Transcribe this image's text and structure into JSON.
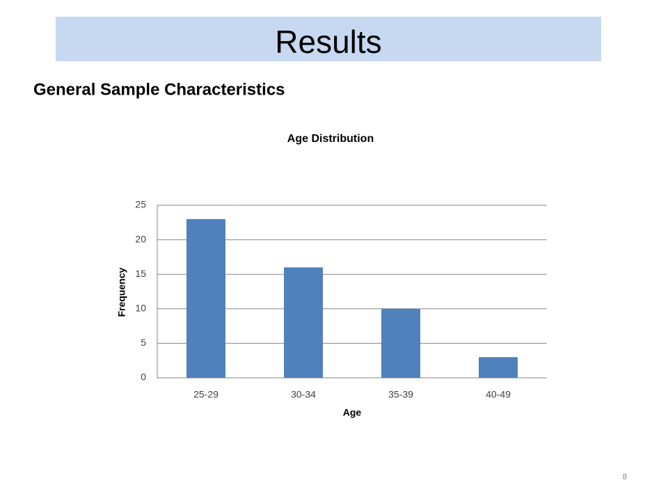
{
  "slide": {
    "title": "Results",
    "subtitle": "General Sample Characteristics",
    "page_number": "8"
  },
  "chart_data": {
    "type": "bar",
    "title": "Age Distribution",
    "x_label": "Age",
    "y_label": "Frequency",
    "categories": [
      "25-29",
      "30-34",
      "35-39",
      "40-49"
    ],
    "values": [
      23,
      16,
      10,
      3
    ],
    "color": "#4f81bd",
    "ylim": [
      0,
      25
    ],
    "yticks": [
      0,
      5,
      10,
      15,
      20,
      25
    ],
    "grid": true
  }
}
